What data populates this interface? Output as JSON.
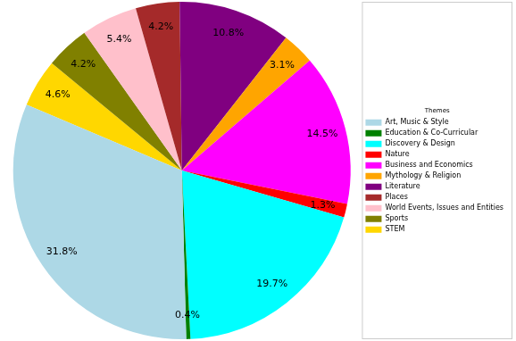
{
  "chart_data": {
    "type": "pie",
    "categories": [
      "Art, Music & Style",
      "Education & Co-Curricular",
      "Discovery & Design",
      "Nature",
      "Business and Economics",
      "Mythology & Religion",
      "Literature",
      "Places",
      "World Events, Issues and Entities",
      "Sports",
      "STEM"
    ],
    "values": [
      31.8,
      0.4,
      19.7,
      1.3,
      14.5,
      3.1,
      10.8,
      4.2,
      5.4,
      4.2,
      4.6
    ],
    "value_labels": [
      "31.8%",
      "0.4%",
      "19.7%",
      "1.3%",
      "14.5%",
      "3.1%",
      "10.8%",
      "4.2%",
      "5.4%",
      "4.2%",
      "4.6%"
    ],
    "colors": [
      "#add8e6",
      "#008000",
      "#00ffff",
      "#ff0000",
      "#ff00ff",
      "#ffa500",
      "#800080",
      "#a52a2a",
      "#ffc0cb",
      "#808000",
      "#ffd700"
    ],
    "legend": "right",
    "legend_title": "Themes",
    "data_labels": true
  }
}
